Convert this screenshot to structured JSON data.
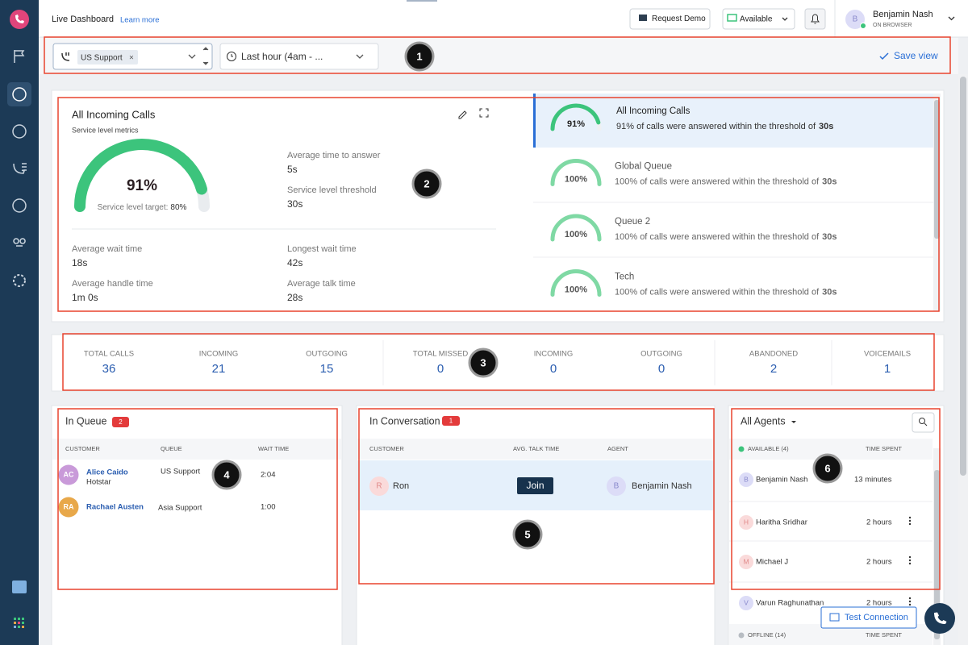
{
  "header": {
    "title": "Live Dashboard",
    "learn_more": "Learn more",
    "request_demo": "Request Demo",
    "status": "Available",
    "user_initial": "B",
    "user_name": "Benjamin Nash",
    "user_status": "ON BROWSER"
  },
  "filters": {
    "queue": "US Support",
    "remove": "×",
    "time_range": "Last hour (4am - ...",
    "save_view": "Save view"
  },
  "service_level": {
    "title": "All Incoming Calls",
    "subtitle": "Service level metrics",
    "gauge": {
      "value": 91,
      "label": "91%",
      "color": "#3cc47c"
    },
    "target_label": "Service level target:",
    "target": "80%",
    "metrics": [
      {
        "label": "Average time to answer",
        "value": "5s"
      },
      {
        "label": "Service level threshold",
        "value": "30s"
      },
      {
        "label": "Average wait time",
        "value": "18s"
      },
      {
        "label": "Average handle time",
        "value": "1m 0s"
      },
      {
        "label": "Longest wait time",
        "value": "42s"
      },
      {
        "label": "Average talk time",
        "value": "28s"
      }
    ],
    "queues": [
      {
        "value": 91,
        "label": "91%",
        "color": "#3cc47c",
        "name": "All Incoming Calls",
        "description": "91% of calls were answered within the threshold of",
        "threshold": "30s"
      },
      {
        "value": 100,
        "label": "100%",
        "color": "#7fd9a4",
        "name": "Global Queue",
        "description": "100% of calls were answered within the threshold of",
        "threshold": "30s"
      },
      {
        "value": 100,
        "label": "100%",
        "color": "#7fd9a4",
        "name": "Queue 2",
        "description": "100% of calls were answered within the threshold of",
        "threshold": "30s"
      },
      {
        "value": 100,
        "label": "100%",
        "color": "#7fd9a4",
        "name": "Tech",
        "description": "100% of calls were answered within the threshold of",
        "threshold": "30s"
      }
    ]
  },
  "stats": [
    {
      "label": "TOTAL CALLS",
      "value": 36
    },
    {
      "label": "INCOMING",
      "value": 21
    },
    {
      "label": "OUTGOING",
      "value": 15
    },
    {
      "label": "TOTAL MISSED",
      "value": 0
    },
    {
      "label": "INCOMING",
      "value": 0
    },
    {
      "label": "OUTGOING",
      "value": 0
    },
    {
      "label": "ABANDONED",
      "value": 2
    },
    {
      "label": "VOICEMAILS",
      "value": 1
    }
  ],
  "in_queue": {
    "title": "In Queue",
    "count": 2,
    "columns": [
      "CUSTOMER",
      "QUEUE",
      "WAIT TIME"
    ],
    "rows": [
      {
        "initials": "AC",
        "color": "#c99ad9",
        "name": "Alice Caido",
        "company": "Hotstar",
        "queue": "US Support",
        "wait": "2:04"
      },
      {
        "initials": "RA",
        "color": "#e8a84a",
        "name": "Rachael Austen",
        "company": null,
        "queue": "Asia Support",
        "wait": "1:00"
      }
    ]
  },
  "in_conversation": {
    "title": "In Conversation",
    "count": 1,
    "columns": [
      "CUSTOMER",
      "AVG. TALK TIME",
      "AGENT"
    ],
    "rows": [
      {
        "initial": "R",
        "customer": "Ron",
        "action": "Join",
        "agent_initial": "B",
        "agent": "Benjamin Nash"
      }
    ]
  },
  "agents": {
    "title": "All Agents",
    "available": "AVAILABLE (4)",
    "time_spent": "TIME SPENT",
    "list": [
      {
        "initial": "B",
        "name": "Benjamin Nash",
        "time": "13 minutes"
      },
      {
        "initial": "H",
        "name": "Haritha Sridhar",
        "time": "2 hours"
      },
      {
        "initial": "M",
        "name": "Michael J",
        "time": "2 hours"
      },
      {
        "initial": "V",
        "name": "Varun Raghunathan",
        "time": "2 hours"
      }
    ],
    "offline": "OFFLINE (14)",
    "offline_time_spent": "TIME SPENT"
  },
  "test_connection": "Test Connection",
  "callouts": [
    1,
    2,
    3,
    4,
    5,
    6
  ]
}
